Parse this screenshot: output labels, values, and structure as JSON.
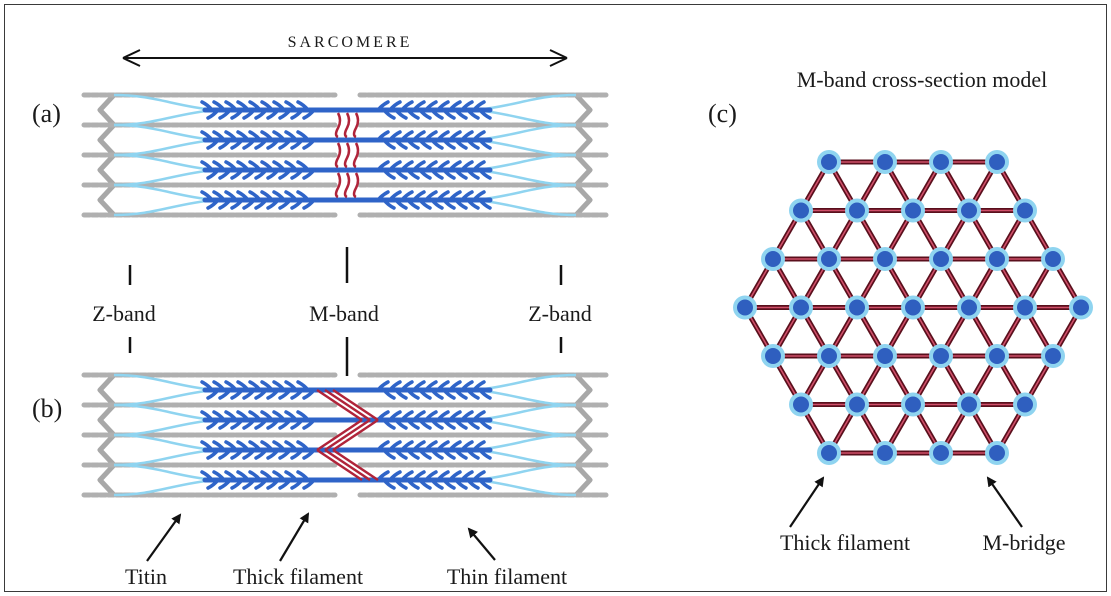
{
  "sarcomere_label": "SARCOMERE",
  "panel_a": "(a)",
  "panel_b": "(b)",
  "panel_c": "(c)",
  "z_band_left": "Z-band",
  "m_band": "M-band",
  "z_band_right": "Z-band",
  "titin": "Titin",
  "thick_filament": "Thick filament",
  "thin_filament": "Thin filament",
  "model_title": "M-band cross-section model",
  "c_thick_filament": "Thick filament",
  "m_bridge": "M-bridge",
  "colors": {
    "thick": "#2f64c8",
    "titin": "#8fd4f0",
    "thin": "#b0b0b0",
    "mbridge": "#b0243a",
    "node_ring": "#8fd4f0",
    "node_core": "#2f5fbf"
  }
}
